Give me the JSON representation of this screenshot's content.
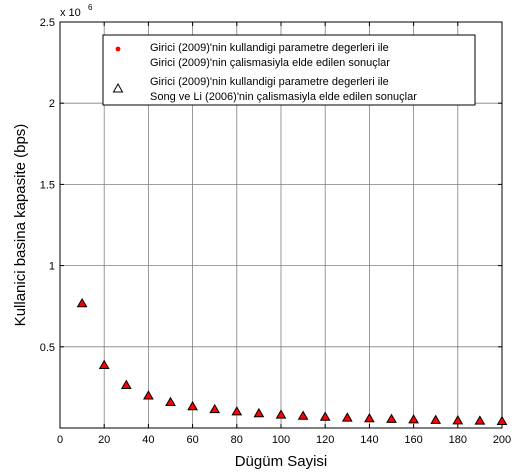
{
  "chart_data": {
    "type": "scatter",
    "xlabel": "Dügüm Sayisi",
    "ylabel": "Kullanici basina kapasite (bps)",
    "xlim": [
      0,
      200
    ],
    "ylim": [
      0,
      2500000
    ],
    "x_ticks": [
      0,
      20,
      40,
      60,
      80,
      100,
      120,
      140,
      160,
      180,
      200
    ],
    "x_tick_labels": [
      "0",
      "20",
      "40",
      "60",
      "80",
      "100",
      "120",
      "140",
      "160",
      "180",
      "200"
    ],
    "y_ticks": [
      500000,
      1000000,
      1500000,
      2000000,
      2500000
    ],
    "y_tick_labels": [
      "0.5",
      "1",
      "1.5",
      "2",
      "2.5"
    ],
    "y_multiplier_base": "x 10",
    "y_multiplier_exp": "6",
    "grid": true,
    "legend_position": "top-right",
    "x": [
      10,
      20,
      30,
      40,
      50,
      60,
      70,
      80,
      90,
      100,
      110,
      120,
      130,
      140,
      150,
      160,
      170,
      180,
      190,
      200
    ],
    "series": [
      {
        "name_lines": [
          "Girici (2009)'nin kullandigi parametre degerleri ile",
          "Girici (2009)'nin çalismasiyla elde edilen sonuçlar"
        ],
        "marker": "dot",
        "color": "#ff0000",
        "values": [
          765000,
          385000,
          262000,
          197000,
          157000,
          131000,
          113000,
          99000,
          88000,
          79000,
          72000,
          66000,
          61000,
          57000,
          53000,
          50000,
          47000,
          44000,
          42000,
          40000
        ]
      },
      {
        "name_lines": [
          "Girici (2009)'nin kullandigi parametre degerleri ile",
          "Song ve Li (2006)'nin çalismasiyla elde edilen sonuçlar"
        ],
        "marker": "triangle",
        "color": "#000000",
        "values": [
          765000,
          385000,
          262000,
          197000,
          157000,
          131000,
          113000,
          99000,
          88000,
          79000,
          72000,
          66000,
          61000,
          57000,
          53000,
          50000,
          47000,
          44000,
          42000,
          40000
        ]
      }
    ]
  }
}
